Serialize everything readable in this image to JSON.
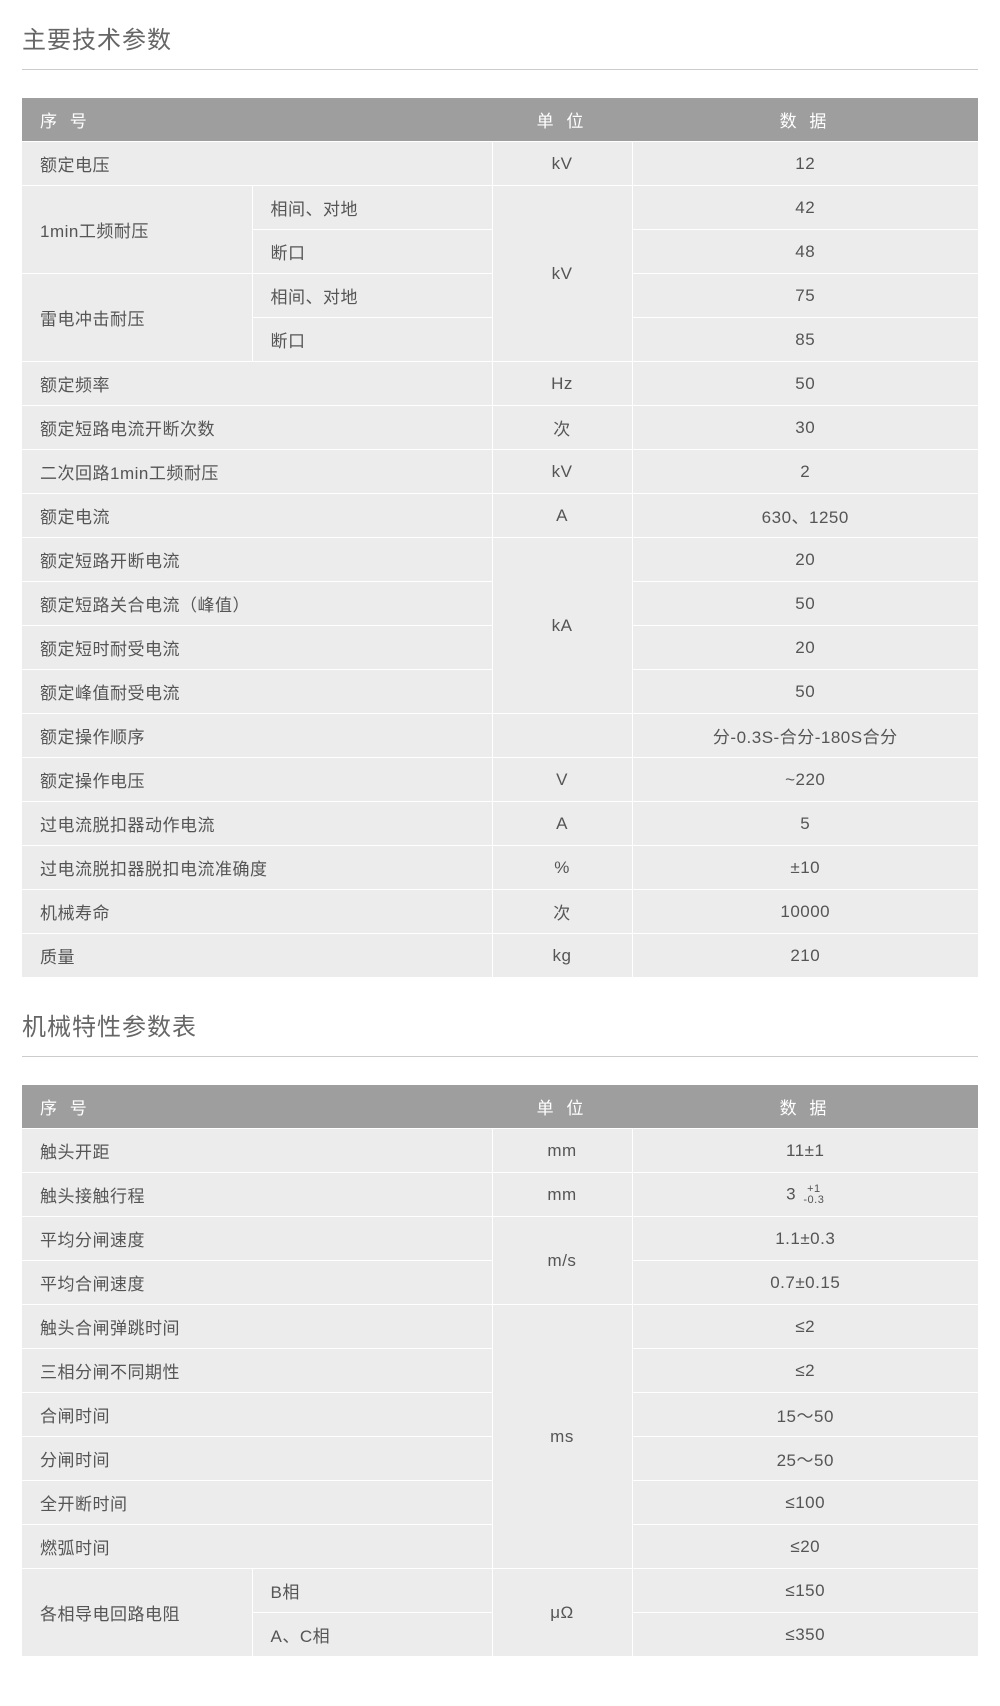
{
  "colors": {
    "header_bg": "#9e9e9e",
    "header_text": "#ffffff",
    "row_bg": "#ececec",
    "border": "#ffffff",
    "text": "#555555",
    "title": "#666666",
    "divider": "#cccccc"
  },
  "typography": {
    "title_fontsize": 24,
    "cell_fontsize": 17,
    "header_fontsize": 17
  },
  "section1": {
    "title": "主要技术参数",
    "headers": {
      "col1": "序 号",
      "col2": "单 位",
      "col3": "数 据"
    },
    "rows": [
      {
        "label": "额定电压",
        "span2": true,
        "unit": "kV",
        "data": "12"
      },
      {
        "label": "1min工频耐压",
        "sublabel": "相间、对地",
        "data": "42",
        "labelRowspan": 2,
        "unitRowspan": 4,
        "unit": "kV"
      },
      {
        "sublabel": "断口",
        "data": "48"
      },
      {
        "label": "雷电冲击耐压",
        "sublabel": "相间、对地",
        "data": "75",
        "labelRowspan": 2
      },
      {
        "sublabel": "断口",
        "data": "85"
      },
      {
        "label": "额定频率",
        "span2": true,
        "unit": "Hz",
        "data": "50"
      },
      {
        "label": "额定短路电流开断次数",
        "span2": true,
        "unit": "次",
        "data": "30"
      },
      {
        "label": "二次回路1min工频耐压",
        "span2": true,
        "unit": "kV",
        "data": "2"
      },
      {
        "label": "额定电流",
        "span2": true,
        "unit": "A",
        "data": "630、1250"
      },
      {
        "label": "额定短路开断电流",
        "span2": true,
        "data": "20",
        "unitRowspan": 4,
        "unit": "kA"
      },
      {
        "label": "额定短路关合电流（峰值）",
        "span2": true,
        "data": "50"
      },
      {
        "label": "额定短时耐受电流",
        "span2": true,
        "data": "20"
      },
      {
        "label": " 额定峰值耐受电流",
        "span2": true,
        "data": "50"
      },
      {
        "label": "额定操作顺序",
        "span2": true,
        "unit": "",
        "data": "分-0.3S-合分-180S合分"
      },
      {
        "label": "额定操作电压",
        "span2": true,
        "unit": "V",
        "data": "~220"
      },
      {
        "label": "过电流脱扣器动作电流",
        "span2": true,
        "unit": "A",
        "data": "5"
      },
      {
        "label": "过电流脱扣器脱扣电流准确度",
        "span2": true,
        "unit": "%",
        "data": "±10"
      },
      {
        "label": "机械寿命",
        "span2": true,
        "unit": "次",
        "data": "10000"
      },
      {
        "label": "质量",
        "span2": true,
        "unit": "kg",
        "data": "210"
      }
    ]
  },
  "section2": {
    "title": "机械特性参数表",
    "headers": {
      "col1": "序 号",
      "col2": "单 位",
      "col3": "数 据"
    },
    "rows": [
      {
        "label": "触头开距",
        "span2": true,
        "unit": "mm",
        "data": "11±1"
      },
      {
        "label": "触头接触行程",
        "span2": true,
        "unit": "mm",
        "data": "3",
        "toleranceTop": "+1",
        "toleranceBot": "-0.3"
      },
      {
        "label": "平均分闸速度",
        "span2": true,
        "data": "1.1±0.3",
        "unitRowspan": 2,
        "unit": "m/s"
      },
      {
        "label": "平均合闸速度",
        "span2": true,
        "data": "0.7±0.15"
      },
      {
        "label": "触头合闸弹跳时间",
        "span2": true,
        "data": "≤2",
        "unitRowspan": 6,
        "unit": "ms"
      },
      {
        "label": "三相分闸不同期性",
        "span2": true,
        "data": "≤2"
      },
      {
        "label": "合闸时间",
        "span2": true,
        "data": "15～50"
      },
      {
        "label": "分闸时间",
        "span2": true,
        "data": "25～50"
      },
      {
        "label": "全开断时间",
        "span2": true,
        "data": "≤100"
      },
      {
        "label": "燃弧时间",
        "span2": true,
        "data": "≤20"
      },
      {
        "label": "各相导电回路电阻",
        "sublabel": "B相",
        "data": "≤150",
        "labelRowspan": 2,
        "unitRowspan": 2,
        "unit": "μΩ"
      },
      {
        "sublabel": "A、C相",
        "data": "≤350"
      }
    ]
  }
}
